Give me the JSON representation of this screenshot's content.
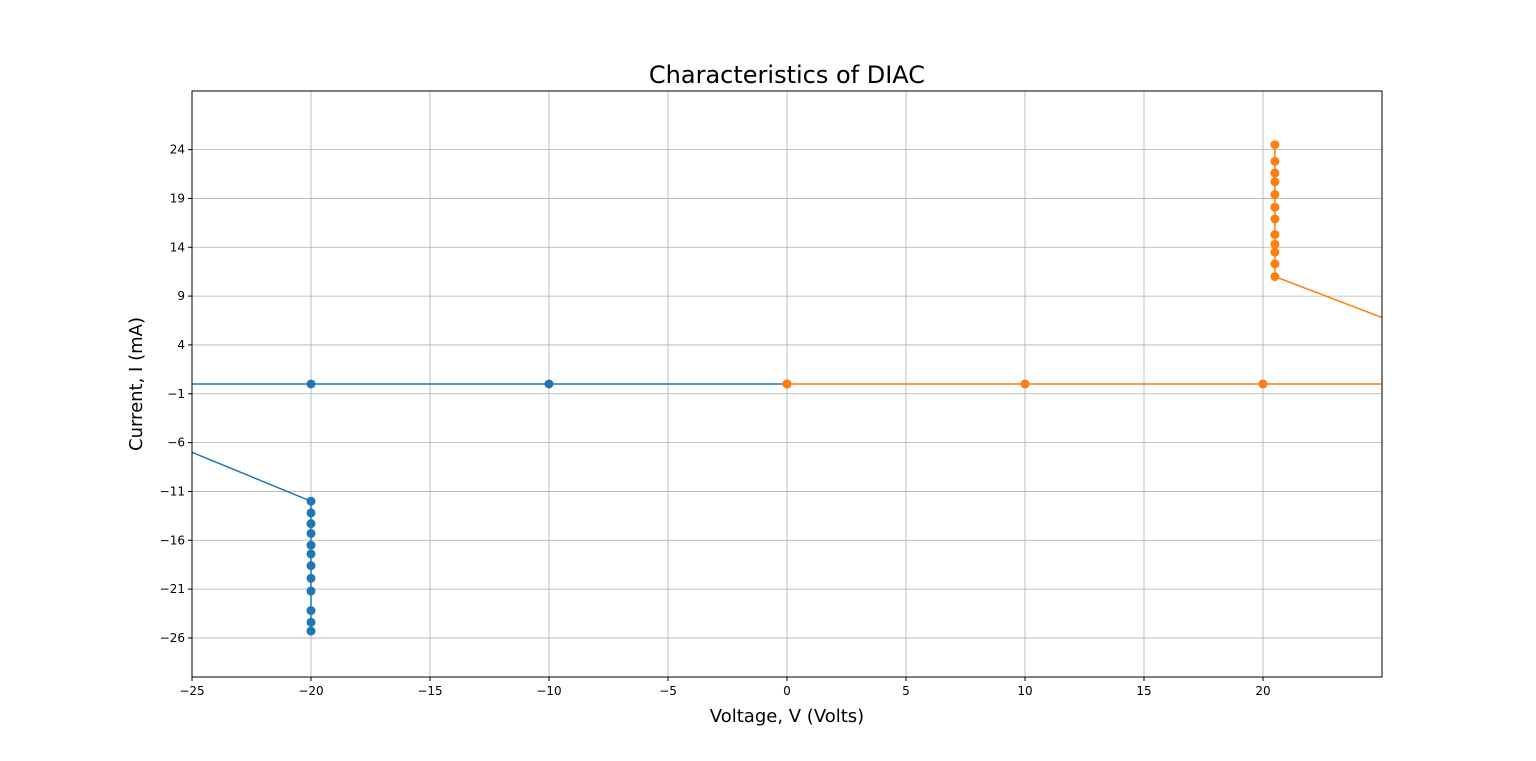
{
  "chart_data": {
    "type": "line",
    "title": "Characteristics of DIAC",
    "xlabel": "Voltage, V (Volts)",
    "ylabel": "Current, I (mA)",
    "xlim": [
      -25,
      25
    ],
    "ylim": [
      -30,
      30
    ],
    "xticks": [
      -25,
      -20,
      -15,
      -10,
      -5,
      0,
      5,
      10,
      15,
      20
    ],
    "yticks": [
      -26,
      -21,
      -16,
      -11,
      -6,
      -1,
      4,
      9,
      14,
      19,
      24
    ],
    "grid": true,
    "series": [
      {
        "color": "#1f77b4",
        "markers": [
          [
            0,
            0
          ],
          [
            -10,
            0
          ],
          [
            -20,
            0
          ],
          [
            -20,
            -12
          ],
          [
            -20,
            -13.2
          ],
          [
            -20,
            -14.3
          ],
          [
            -20,
            -15.3
          ],
          [
            -20,
            -16.5
          ],
          [
            -20,
            -17.4
          ],
          [
            -20,
            -18.6
          ],
          [
            -20,
            -19.9
          ],
          [
            -20,
            -21.2
          ],
          [
            -20,
            -23.2
          ],
          [
            -20,
            -24.4
          ],
          [
            -20,
            -25.3
          ]
        ],
        "line": [
          [
            0,
            0
          ],
          [
            -10,
            0
          ],
          [
            -20,
            0
          ],
          [
            -25,
            0
          ],
          null,
          [
            -25,
            -7
          ],
          [
            -20,
            -12
          ],
          [
            -20,
            -25.3
          ]
        ]
      },
      {
        "color": "#ff7f0e",
        "markers": [
          [
            0,
            0
          ],
          [
            10,
            0
          ],
          [
            20,
            0
          ],
          [
            20.5,
            11
          ],
          [
            20.5,
            12.3
          ],
          [
            20.5,
            13.5
          ],
          [
            20.5,
            14.3
          ],
          [
            20.5,
            15.3
          ],
          [
            20.5,
            16.9
          ],
          [
            20.5,
            18.1
          ],
          [
            20.5,
            19.4
          ],
          [
            20.5,
            20.7
          ],
          [
            20.5,
            21.6
          ],
          [
            20.5,
            22.8
          ],
          [
            20.5,
            24.5
          ]
        ],
        "line": [
          [
            0,
            0
          ],
          [
            10,
            0
          ],
          [
            20,
            0
          ],
          [
            25,
            0
          ],
          null,
          [
            25,
            6.8
          ],
          [
            20.5,
            11
          ],
          [
            20.5,
            24.5
          ]
        ]
      }
    ]
  }
}
